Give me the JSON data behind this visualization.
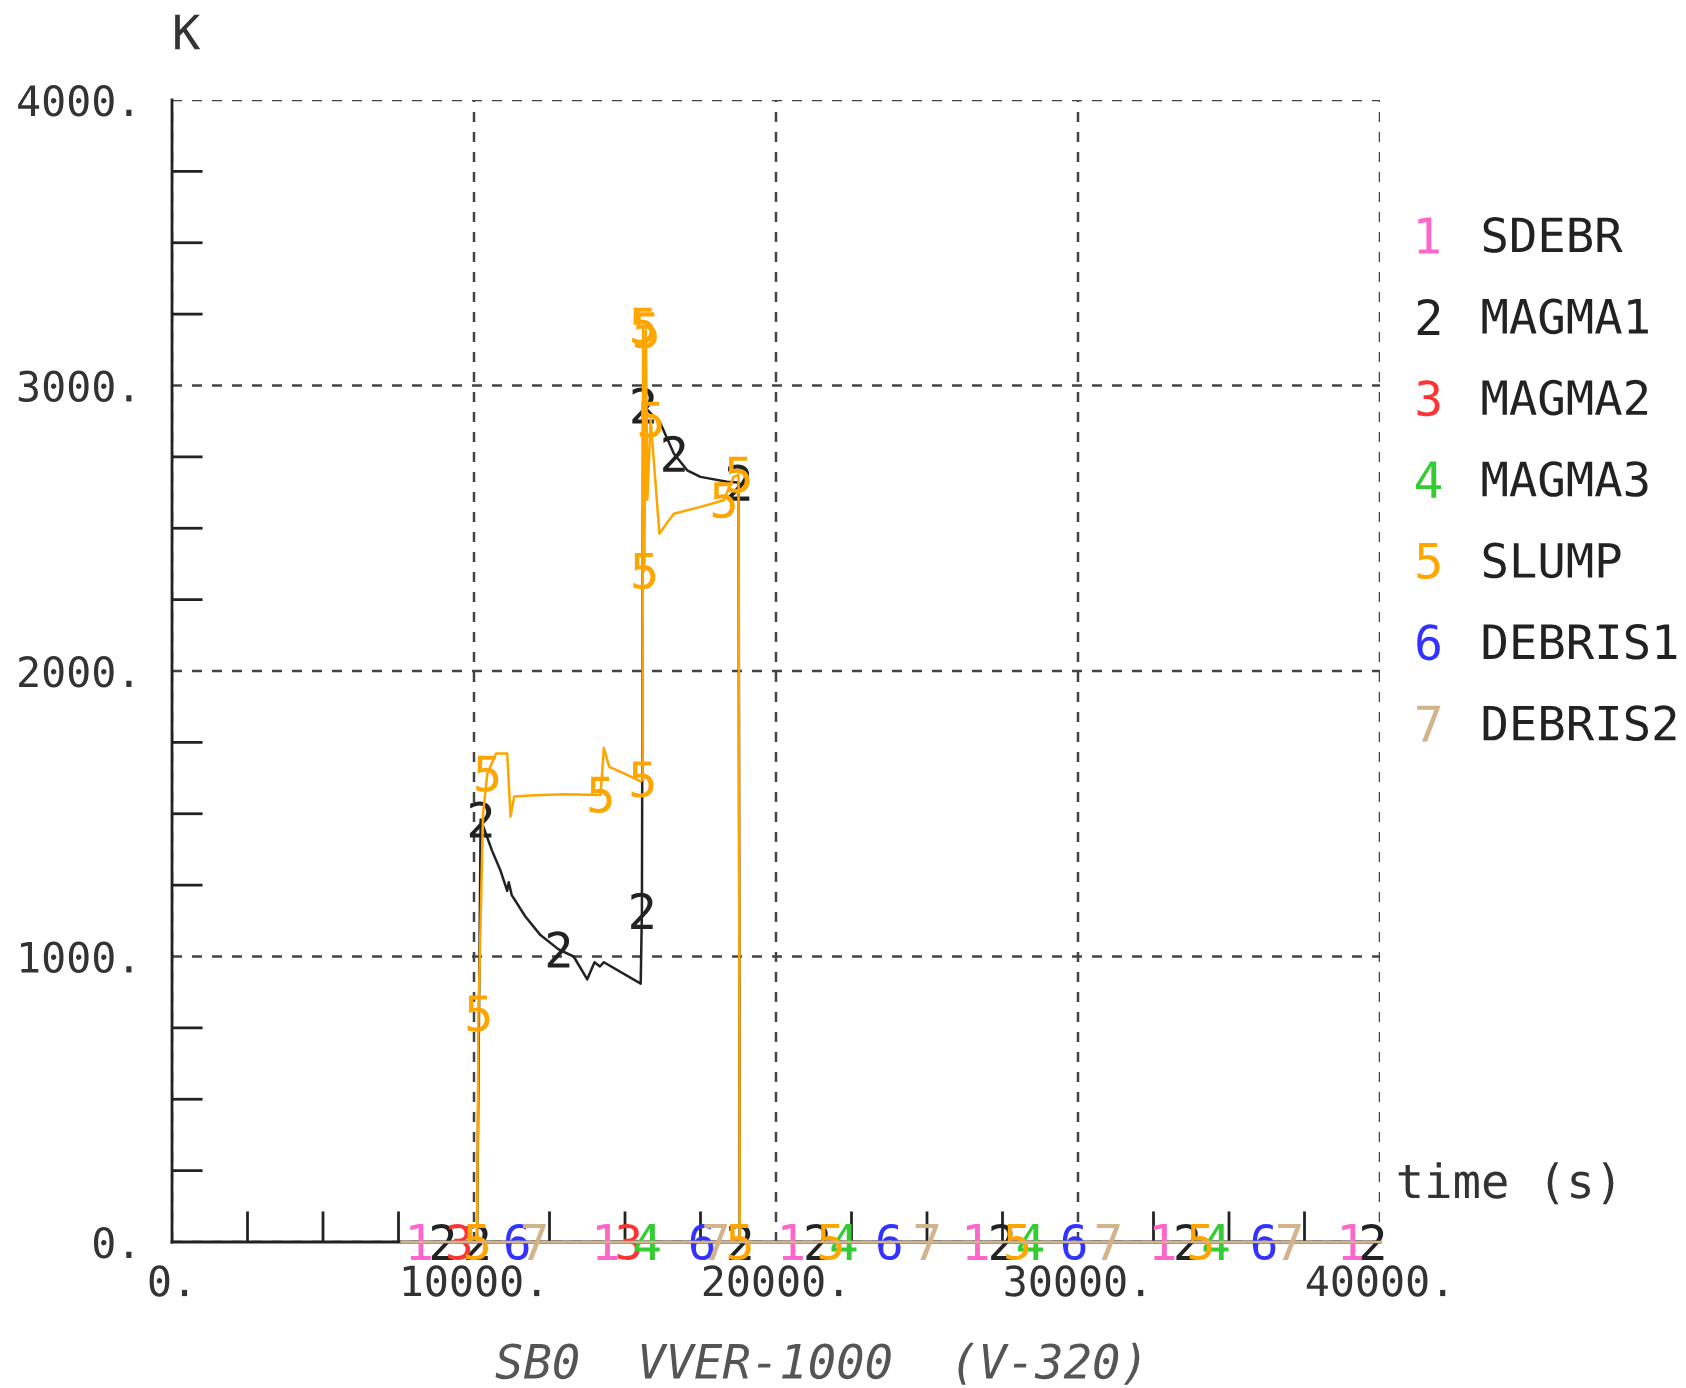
{
  "chart_data": {
    "type": "line",
    "title": "SB0  VVER-1000  (V-320)",
    "xlabel": "time (s)",
    "ylabel": "K",
    "series": [
      {
        "name": "SDEBR",
        "type": "scatter",
        "color": "#ff66cc",
        "x": [
          8232,
          14410,
          20550,
          26660,
          32850,
          39090
        ],
        "values": [
          0,
          0,
          0,
          0,
          0,
          0
        ]
      },
      {
        "name": "MAGMA1",
        "color": "#222222",
        "x": [
          8960,
          9500,
          10100,
          10220,
          10600,
          10880,
          11100,
          11150,
          11250,
          11700,
          12200,
          12800,
          13300,
          13750,
          13990,
          14170,
          14300,
          15520,
          15560,
          15600,
          16180,
          16620,
          17060,
          17500,
          18380,
          18760,
          18800,
          19500,
          21364,
          24000,
          27480,
          30500,
          33615,
          36500,
          39755
        ],
        "values": [
          0,
          null,
          0,
          1480,
          1370,
          1300,
          1230,
          1260,
          1215,
          1140,
          1075,
          1025,
          1000,
          920,
          980,
          965,
          980,
          905,
          1160,
          2930,
          2866,
          2761,
          2703,
          2680,
          2663,
          2660,
          0,
          null,
          0,
          null,
          0,
          null,
          0,
          null,
          0
        ]
      },
      {
        "name": "MAGMA2",
        "type": "scatter",
        "color": "#ff3333",
        "x": [
          9510,
          15120
        ],
        "values": [
          0,
          0
        ]
      },
      {
        "name": "MAGMA3",
        "type": "scatter",
        "color": "#33cc33",
        "x": [
          15735,
          22250,
          28430,
          34570
        ],
        "values": [
          0,
          0,
          0,
          0
        ]
      },
      {
        "name": "SLUMP",
        "color": "#ffa500",
        "x": [
          10100,
          10150,
          10300,
          10440,
          10730,
          11100,
          11210,
          11330,
          12000,
          13000,
          14190,
          14300,
          14480,
          15000,
          15520,
          15580,
          15600,
          15640,
          15690,
          15740,
          15850,
          16140,
          16400,
          16620,
          17500,
          18270,
          18600,
          18760,
          18800,
          19500,
          21810,
          25000,
          27990,
          31000,
          34060
        ],
        "values": [
          0,
          800,
          1500,
          1640,
          1711,
          1711,
          1490,
          1560,
          1565,
          1568,
          1566,
          1730,
          1664,
          1640,
          1613,
          1620,
          3209,
          2350,
          3193,
          2600,
          2880,
          2481,
          2520,
          2551,
          2575,
          2598,
          2680,
          2687,
          0,
          null,
          0,
          null,
          0,
          null,
          0
        ]
      },
      {
        "name": "DEBRIS1",
        "type": "scatter",
        "color": "#3333ff",
        "x": [
          11430,
          17550,
          23750,
          29870,
          36160
        ],
        "values": [
          0,
          0,
          0,
          0,
          0
        ]
      },
      {
        "name": "DEBRIS2",
        "color": "#d2b48c",
        "x": [
          7600,
          8000,
          9000,
          10000,
          11000,
          12000,
          13000,
          14000,
          15000,
          16000,
          17000,
          18000,
          19000,
          20000,
          21000,
          22000,
          23000,
          24000,
          25000,
          26000,
          27000,
          28000,
          29000,
          30000,
          31000,
          32000,
          33000,
          34000,
          35000,
          36000,
          37000,
          38000,
          39000,
          40000
        ],
        "values": [
          0,
          0,
          0,
          0,
          0,
          0,
          0,
          0,
          0,
          0,
          0,
          0,
          0,
          0,
          0,
          0,
          0,
          0,
          0,
          0,
          0,
          0,
          0,
          0,
          0,
          0,
          0,
          0,
          0,
          0,
          0,
          0,
          0,
          0
        ]
      }
    ],
    "xlim": [
      0,
      40000
    ],
    "xticks": [
      {
        "value": 0,
        "label": "0."
      },
      {
        "value": 2500,
        "label": null
      },
      {
        "value": 5000,
        "label": null
      },
      {
        "value": 7500,
        "label": null
      },
      {
        "value": 10000,
        "label": "10000."
      },
      {
        "value": 12500,
        "label": null
      },
      {
        "value": 15000,
        "label": null
      },
      {
        "value": 17500,
        "label": null
      },
      {
        "value": 20000,
        "label": "20000."
      },
      {
        "value": 22500,
        "label": null
      },
      {
        "value": 25000,
        "label": null
      },
      {
        "value": 27500,
        "label": null
      },
      {
        "value": 30000,
        "label": "30000."
      },
      {
        "value": 32500,
        "label": null
      },
      {
        "value": 35000,
        "label": null
      },
      {
        "value": 37500,
        "label": null
      },
      {
        "value": 40000,
        "label": "40000."
      }
    ],
    "ylim": [
      0,
      4000
    ],
    "yticks": [
      {
        "value": 0,
        "label": "0."
      },
      {
        "value": 250,
        "label": null
      },
      {
        "value": 500,
        "label": null
      },
      {
        "value": 750,
        "label": null
      },
      {
        "value": 1000,
        "label": "1000."
      },
      {
        "value": 1250,
        "label": null
      },
      {
        "value": 1500,
        "label": null
      },
      {
        "value": 1750,
        "label": null
      },
      {
        "value": 2000,
        "label": "2000."
      },
      {
        "value": 2250,
        "label": null
      },
      {
        "value": 2500,
        "label": null
      },
      {
        "value": 2750,
        "label": null
      },
      {
        "value": 3000,
        "label": "3000."
      },
      {
        "value": 3250,
        "label": null
      },
      {
        "value": 3500,
        "label": null
      },
      {
        "value": 3750,
        "label": null
      },
      {
        "value": 4000,
        "label": "4000."
      }
    ],
    "grid": true,
    "legend": "right",
    "line_style": "solid"
  }
}
